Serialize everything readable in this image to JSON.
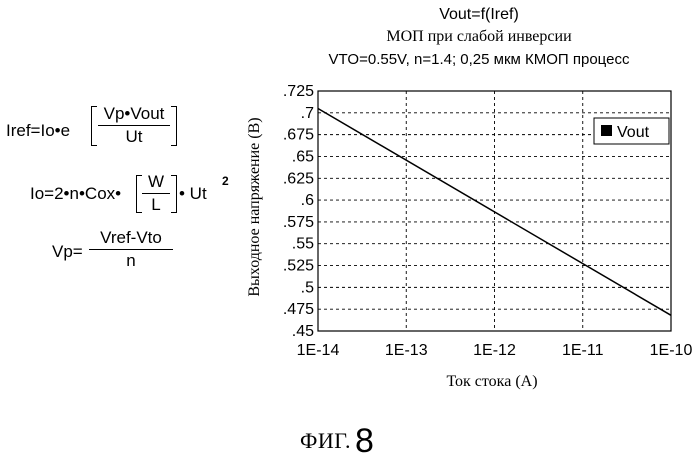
{
  "chart_data": {
    "type": "line",
    "title": "Vout=f(Iref)",
    "subtitle_lines": [
      "МОП при слабой инверсии",
      "VTO=0.55V, n=1.4; 0,25 мкм КМОП процесс"
    ],
    "xlabel": "Ток стока (А)",
    "ylabel": "Выходное напряжение  (В)",
    "xscale": "log",
    "xlim": [
      1e-14,
      1e-10
    ],
    "ylim": [
      0.45,
      0.725
    ],
    "x_ticks": [
      1e-14,
      1e-13,
      1e-12,
      1e-11,
      1e-10
    ],
    "x_tick_labels": [
      "1E-14",
      "1E-13",
      "1E-12",
      "1E-11",
      "1E-10"
    ],
    "y_ticks": [
      0.725,
      0.7,
      0.675,
      0.65,
      0.625,
      0.6,
      0.575,
      0.55,
      0.525,
      0.5,
      0.475,
      0.45
    ],
    "y_tick_labels": [
      ".725",
      ".7",
      ".675",
      ".65",
      ".625",
      ".6",
      ".575",
      ".55",
      ".525",
      ".5",
      ".475",
      ".45"
    ],
    "grid": true,
    "legend_position": "top-right",
    "series": [
      {
        "name": "Vout",
        "x": [
          1e-14,
          1e-10
        ],
        "y": [
          0.705,
          0.468
        ]
      }
    ]
  },
  "equations": {
    "iref": {
      "lhs": "Iref=Io•e",
      "num": "Vp•Vout",
      "den": "Ut"
    },
    "io": {
      "lhs": "Io=2•n•Cox•",
      "num": "W",
      "den": "L",
      "rhs": "• Ut",
      "sup": "2"
    },
    "vp": {
      "lhs": "Vp=",
      "num": "Vref-Vto",
      "den": "n"
    }
  },
  "figure_label": {
    "prefix": "ФИГ.",
    "number": "8"
  },
  "colors": {
    "line": "#000000",
    "grid": "#000000",
    "frame": "#000000",
    "legend_swatch": "#000000"
  }
}
